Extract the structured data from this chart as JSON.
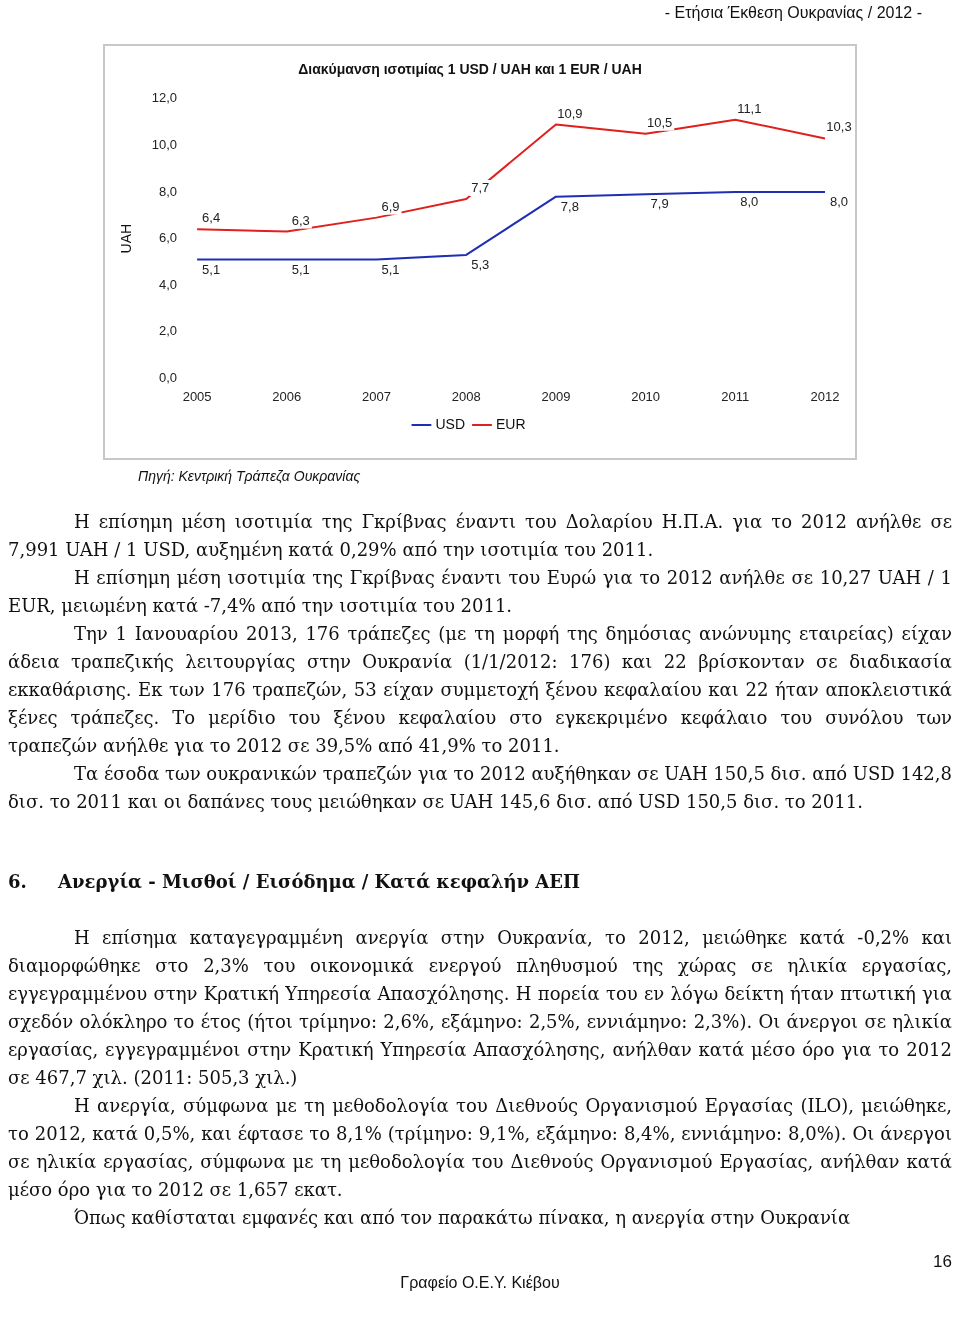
{
  "chart_data": {
    "type": "line",
    "title": "Διακύμανση ισοτιμίας 1 USD / UAH και 1 EUR / UAH",
    "ylabel": "UAH",
    "categories": [
      "2005",
      "2006",
      "2007",
      "2008",
      "2009",
      "2010",
      "2011",
      "2012"
    ],
    "series": [
      {
        "name": "USD",
        "color": "#1f2fb4",
        "values": [
          5.1,
          5.1,
          5.1,
          5.3,
          7.8,
          7.9,
          8.0,
          8.0
        ],
        "value_labels": [
          "5,1",
          "5,1",
          "5,1",
          "5,3",
          "7,8",
          "7,9",
          "8,0",
          "8,0"
        ]
      },
      {
        "name": "EUR",
        "color": "#e0201e",
        "values": [
          6.4,
          6.3,
          6.9,
          7.7,
          10.9,
          10.5,
          11.1,
          10.3
        ],
        "value_labels": [
          "6,4",
          "6,3",
          "6,9",
          "7,7",
          "10,9",
          "10,5",
          "11,1",
          "10,3"
        ]
      }
    ],
    "ylim": [
      0,
      12
    ],
    "yticks": [
      {
        "value": 0,
        "label": "0,0"
      },
      {
        "value": 2,
        "label": "2,0"
      },
      {
        "value": 4,
        "label": "4,0"
      },
      {
        "value": 6,
        "label": "6,0"
      },
      {
        "value": 8,
        "label": "8,0"
      },
      {
        "value": 10,
        "label": "10,0"
      },
      {
        "value": 12,
        "label": "12,0"
      }
    ],
    "grid": false,
    "legend": "bottom",
    "marker": "none",
    "line_style": "solid",
    "annotations": [
      "- Ετήσια Έκθεση Ουκρανίας / 2012 -",
      "Πηγή: Κεντρική Τράπεζα Ουκρανίας",
      "Η επίσημη μέση ισοτιμία της Γκρίβνας έναντι του Δολαρίου Η.Π.Α. για το 2012 ανήλθε σε 7,991 UAH / 1 USD, αυξημένη κατά 0,29% από την ισοτιμία του 2011.",
      "Η επίσημη μέση ισοτιμία της Γκρίβνας έναντι του Ευρώ για το 2012 ανήλθε σε 10,27 UAH / 1 EUR, μειωμένη κατά -7,4% από την ισοτιμία του 2011.",
      "Την 1 Ιανουαρίου 2013, 176 τράπεζες (με τη μορφή της δημόσιας ανώνυμης εταιρείας) είχαν άδεια τραπεζικής λειτουργίας στην Ουκρανία (1/1/2012: 176) και 22 βρίσκονταν σε διαδικασία εκκαθάρισης. Εκ των 176 τραπεζών, 53 είχαν συμμετοχή ξένου κεφαλαίου και 22 ήταν αποκλειστικά ξένες τράπεζες. Το μερίδιο του ξένου κεφαλαίου στο εγκεκριμένο κεφάλαιο του συνόλου των τραπεζών ανήλθε για το 2012 σε 39,5% από 41,9% το 2011.",
      "Τα έσοδα των ουκρανικών τραπεζών για το 2012 αυξήθηκαν σε UAH 150,5 δισ. από USD 142,8 δισ. το 2011 και οι δαπάνες τους μειώθηκαν σε UAH 145,6 δισ. από USD 150,5 δισ. το 2011.",
      "6.     Ανεργία - Μισθοί / Εισόδημα / Κατά κεφαλήν ΑΕΠ",
      "Η επίσημα καταγεγραμμένη ανεργία στην Ουκρανία, το 2012, μειώθηκε κατά -0,2% και διαμορφώθηκε στο 2,3% του οικονομικά ενεργού πληθυσμού της χώρας σε ηλικία εργασίας, εγγεγραμμένου στην Κρατική Υπηρεσία Απασχόλησης. Η πορεία του εν λόγω δείκτη ήταν πτωτική για σχεδόν ολόκληρο το έτος (ήτοι τρίμηνο: 2,6%, εξάμηνο: 2,5%, εννιάμηνο: 2,3%). Οι άνεργοι σε ηλικία εργασίας, εγγεγραμμένοι στην Κρατική Υπηρεσία Απασχόλησης, ανήλθαν κατά μέσο όρο για το 2012 σε 467,7 χιλ. (2011: 505,3 χιλ.)",
      "Η ανεργία, σύμφωνα με τη μεθοδολογία του Διεθνούς Οργανισμού Εργασίας (ILO), μειώθηκε, το 2012, κατά 0,5%, και έφτασε το 8,1% (τρίμηνο: 9,1%, εξάμηνο: 8,4%, εννιάμηνο: 8,0%). Οι άνεργοι σε ηλικία εργασίας, σύμφωνα με τη μεθοδολογία του Διεθνούς Οργανισμού Εργασίας, ανήλθαν κατά μέσο όρο για το 2012 σε 1,657 εκατ.",
      "Όπως καθίσταται εμφανές και από τον παρακάτω πίνακα, η ανεργία στην Ουκρανία",
      "Γραφείο Ο.Ε.Υ. Κιέβου",
      "16"
    ]
  }
}
